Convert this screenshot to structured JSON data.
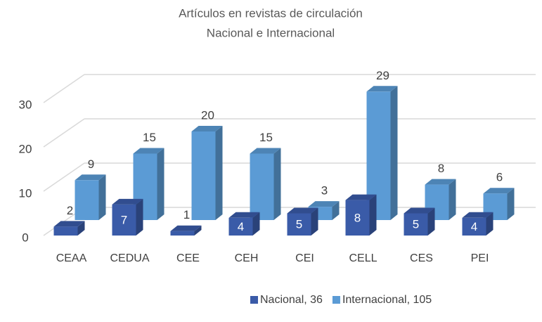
{
  "chart_data": {
    "type": "bar3d",
    "title": [
      "Artículos en revistas de circulación",
      "Nacional e Internacional"
    ],
    "categories": [
      "CEAA",
      "CEDUA",
      "CEE",
      "CEH",
      "CEI",
      "CELL",
      "CES",
      "PEI"
    ],
    "series": [
      {
        "name": "Nacional, 36",
        "color": "#3a5ba8",
        "values": [
          2,
          7,
          1,
          4,
          5,
          8,
          5,
          4
        ]
      },
      {
        "name": "Internacional, 105",
        "color": "#5b9bd5",
        "values": [
          9,
          15,
          20,
          15,
          3,
          29,
          8,
          6
        ]
      }
    ],
    "ylim": [
      0,
      35
    ],
    "yticks": [
      0,
      10,
      20,
      30
    ],
    "grid": true,
    "legend": "bottom"
  }
}
